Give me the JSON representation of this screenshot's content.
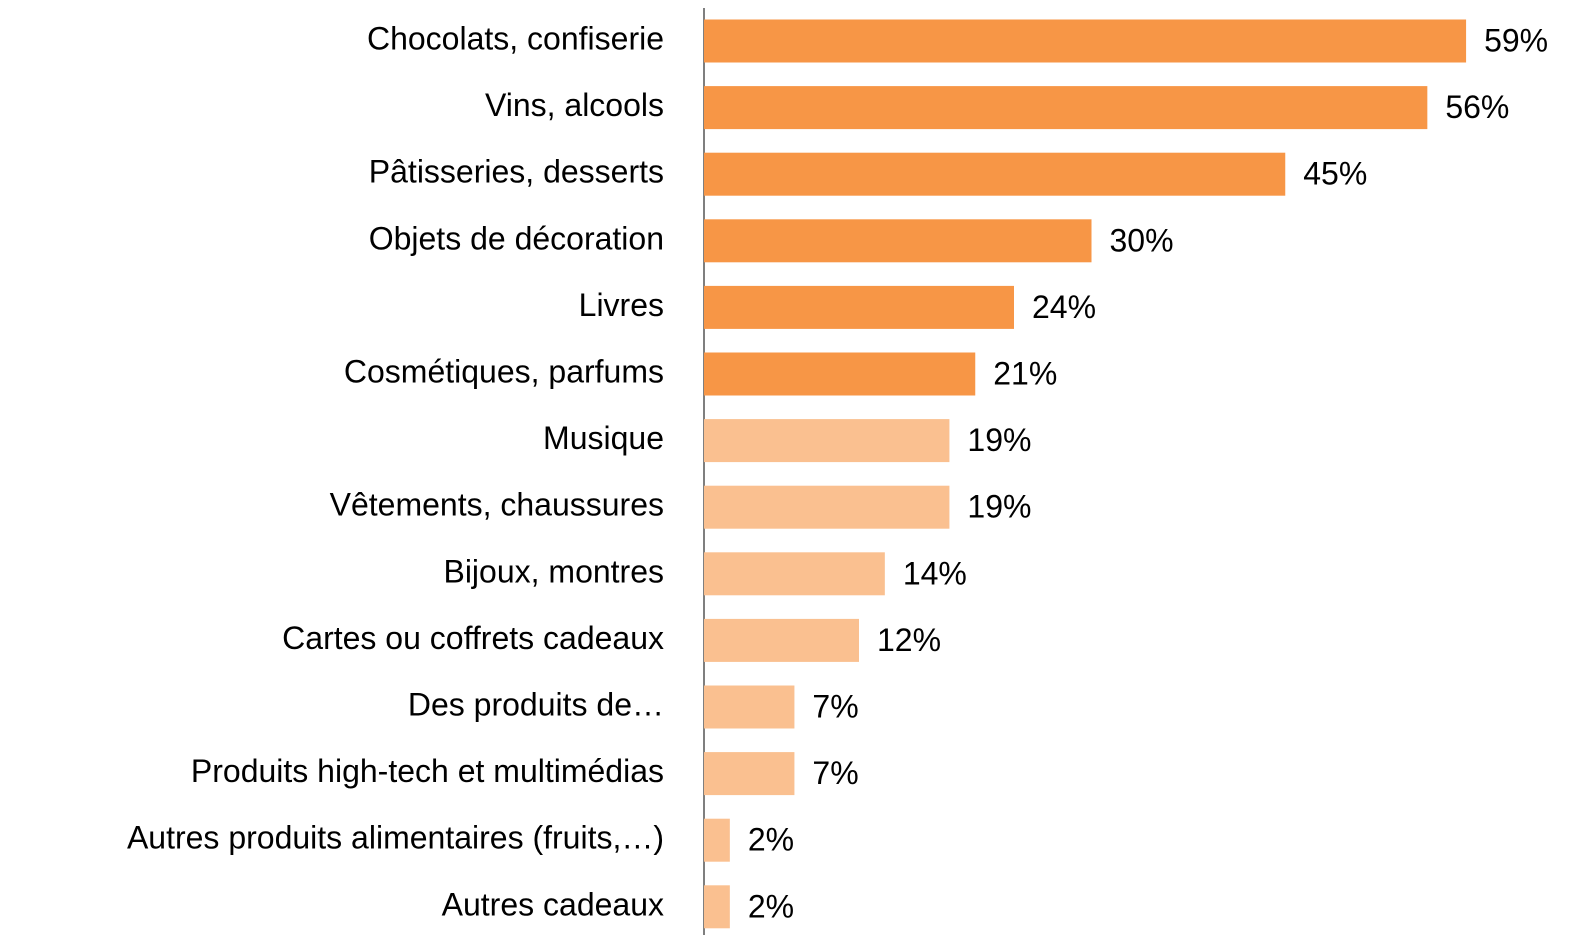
{
  "chart_data": {
    "type": "bar",
    "orientation": "horizontal",
    "categories": [
      "Chocolats, confiserie",
      "Vins, alcools",
      "Pâtisseries, desserts",
      "Objets de décoration",
      "Livres",
      "Cosmétiques, parfums",
      "Musique",
      "Vêtements, chaussures",
      "Bijoux, montres",
      "Cartes ou coffrets cadeaux",
      "Des produits de…",
      "Produits high-tech et multimédias",
      "Autres produits alimentaires (fruits,…)",
      "Autres cadeaux"
    ],
    "values": [
      59,
      56,
      45,
      30,
      24,
      21,
      19,
      19,
      14,
      12,
      7,
      7,
      2,
      2
    ],
    "value_labels": [
      "59%",
      "56%",
      "45%",
      "30%",
      "24%",
      "21%",
      "19%",
      "19%",
      "14%",
      "12%",
      "7%",
      "7%",
      "2%",
      "2%"
    ],
    "colors": [
      "#F79646",
      "#F79646",
      "#F79646",
      "#F79646",
      "#F79646",
      "#F79646",
      "#FAC090",
      "#FAC090",
      "#FAC090",
      "#FAC090",
      "#FAC090",
      "#FAC090",
      "#FAC090",
      "#FAC090"
    ],
    "xlim": [
      0,
      60
    ]
  }
}
